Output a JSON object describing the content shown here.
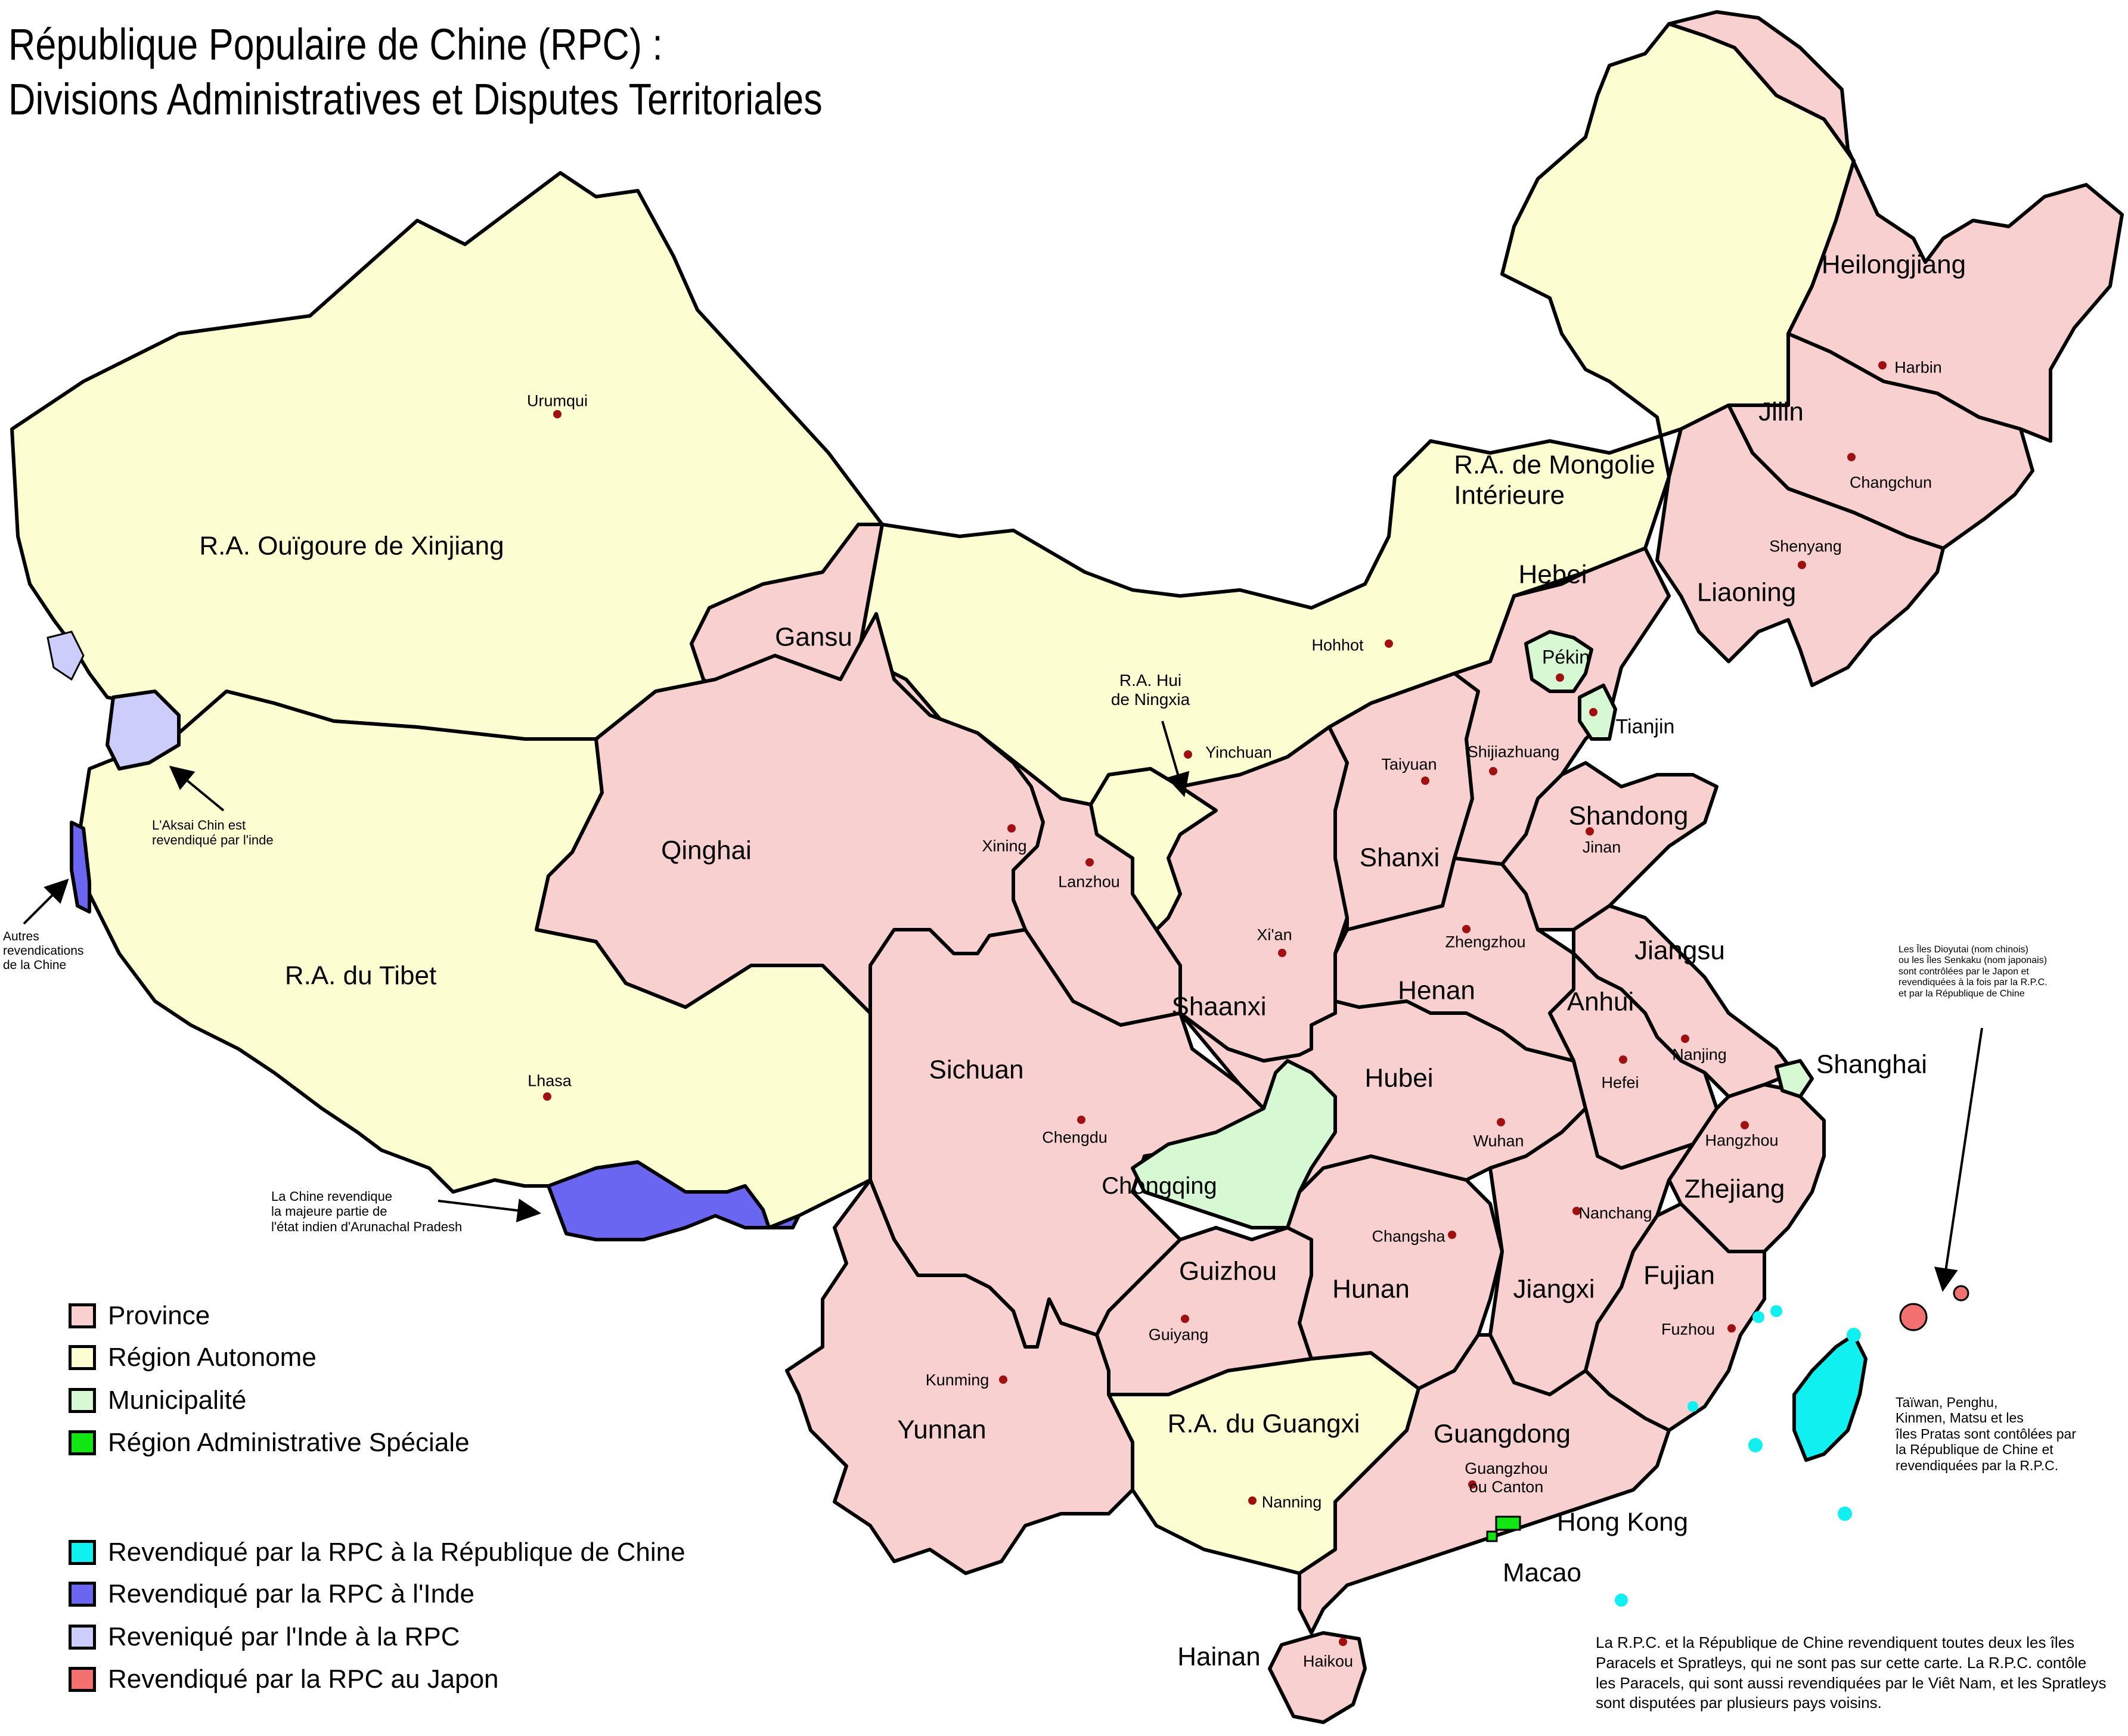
{
  "title": {
    "line1": "République Populaire de Chine (RPC) :",
    "line2": "Divisions Administratives et Disputes Territoriales"
  },
  "colors": {
    "province": "#f9d0d0",
    "autonomous_region": "#fdfdd2",
    "municipality": "#d6f9d4",
    "special_administrative_region": "#12e612",
    "claimed_from_roc": "#10f0f0",
    "claimed_from_india": "#6a66f2",
    "claimed_by_india": "#cdcdfb",
    "claimed_from_japan": "#f27070",
    "city_dot": "#a01010"
  },
  "regions": {
    "xinjiang": "R.A. Ouïgoure de Xinjiang",
    "tibet": "R.A. du Tibet",
    "mongolie": "R.A. de Mongolie\nIntérieure",
    "ningxia": "R.A. Hui\nde Ningxia",
    "guangxi": "R.A. du Guangxi",
    "gansu": "Gansu",
    "qinghai": "Qinghai",
    "sichuan": "Sichuan",
    "yunnan": "Yunnan",
    "guizhou": "Guizhou",
    "hunan": "Hunan",
    "hubei": "Hubei",
    "henan": "Henan",
    "shaanxi": "Shaanxi",
    "shanxi": "Shanxi",
    "hebei": "Hebei",
    "shandong": "Shandong",
    "jiangsu": "Jiangsu",
    "anhui": "Anhui",
    "zhejiang": "Zhejiang",
    "jiangxi": "Jiangxi",
    "fujian": "Fujian",
    "guangdong": "Guangdong",
    "hainan": "Hainan",
    "heilongjiang": "Heilongjiang",
    "jilin": "Jilin",
    "liaoning": "Liaoning",
    "chongqing": "Chongqing",
    "pekin": "Pékin",
    "tianjin": "Tianjin",
    "shanghai": "Shanghai",
    "hongkong": "Hong Kong",
    "macao": "Macao"
  },
  "cities": {
    "urumqui": "Urumqui",
    "lhasa": "Lhasa",
    "xining": "Xining",
    "lanzhou": "Lanzhou",
    "yinchuan": "Yinchuan",
    "hohhot": "Hohhot",
    "harbin": "Harbin",
    "changchun": "Changchun",
    "shenyang": "Shenyang",
    "shijiazhuang": "Shijiazhuang",
    "taiyuan": "Taiyuan",
    "jinan": "Jinan",
    "zhengzhou": "Zhengzhou",
    "xian": "Xi'an",
    "chengdu": "Chengdu",
    "wuhan": "Wuhan",
    "hefei": "Hefei",
    "nanjing": "Nanjing",
    "hangzhou": "Hangzhou",
    "nanchang": "Nanchang",
    "changsha": "Changsha",
    "fuzhou": "Fuzhou",
    "guiyang": "Guiyang",
    "kunming": "Kunming",
    "nanning": "Nanning",
    "guangzhou": "Guangzhou\nou Canton",
    "haikou": "Haikou"
  },
  "annotations": {
    "aksai_chin": "L'Aksai Chin est\nrevendiqué par l'inde",
    "autres": "Autres\nrevendications\nde la Chine",
    "arunachal": "La Chine revendique\nla majeure partie de\nl'état indien d'Arunachal Pradesh",
    "diaoyu": "Les Îles Dioyutai (nom chinois)\nou les Îles Senkaku (nom japonais)\nsont contrôlées par le Japon et\nrevendiquées à la fois par la R.P.C.\net par la République de Chine",
    "taiwan": "Taïwan, Penghu,\nKinmen, Matsu et les\nîles Pratas sont contôlées par\nla République de Chine et\nrevendiquées par la R.P.C.",
    "paracels": "La R.P.C. et la République de Chine revendiquent toutes deux les îles Paracels et Spratleys, qui ne sont pas sur cette carte. La R.P.C. contôle les Paracels, qui sont aussi revendiquées par le Viêt Nam, et les Spratleys  sont disputées par plusieurs pays voisins."
  },
  "legend": {
    "province": "Province",
    "autonomous_region": "Région Autonome",
    "municipality": "Municipalité",
    "sar": "Région Administrative Spéciale",
    "claimed_from_roc": "Revendiqué par la RPC à la République de Chine",
    "claimed_from_india": "Revendiqué par la RPC à l'Inde",
    "claimed_by_india": "Reveniqué par l'Inde à la RPC",
    "claimed_from_japan": "Revendiqué par la RPC au Japon"
  }
}
